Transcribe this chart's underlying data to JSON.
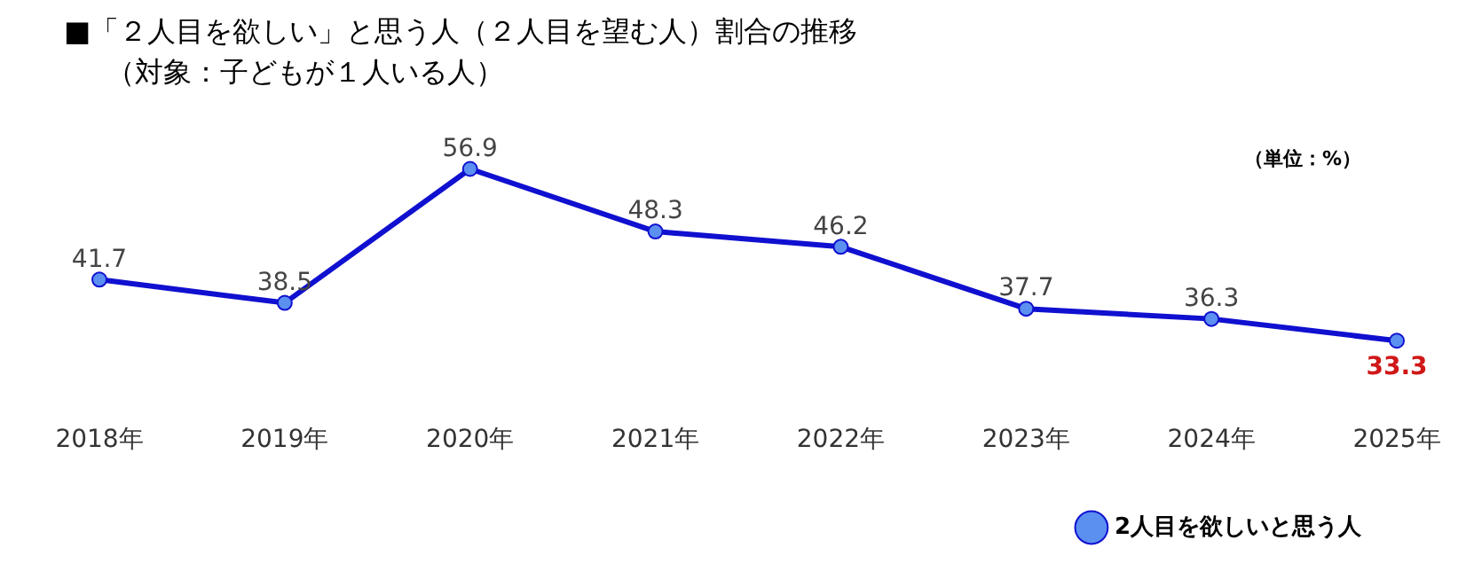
{
  "chart_data": {
    "type": "line",
    "title": "■「２人目を欲しい」と思う人（２人目を望む人）割合の推移",
    "subtitle": "（対象：子どもが１人いる人）",
    "annotations": [
      "（単位：%）"
    ],
    "categories": [
      "2018年",
      "2019年",
      "2020年",
      "2021年",
      "2022年",
      "2023年",
      "2024年",
      "2025年"
    ],
    "series": [
      {
        "name": "2人目を欲しいと思う人",
        "color": "#1010d0",
        "values": [
          41.7,
          38.5,
          56.9,
          48.3,
          46.2,
          37.7,
          36.3,
          33.3
        ]
      }
    ],
    "data_labels": true,
    "marker": "circle",
    "legend": "bottom right",
    "tick_labels": "x",
    "grid": false
  }
}
